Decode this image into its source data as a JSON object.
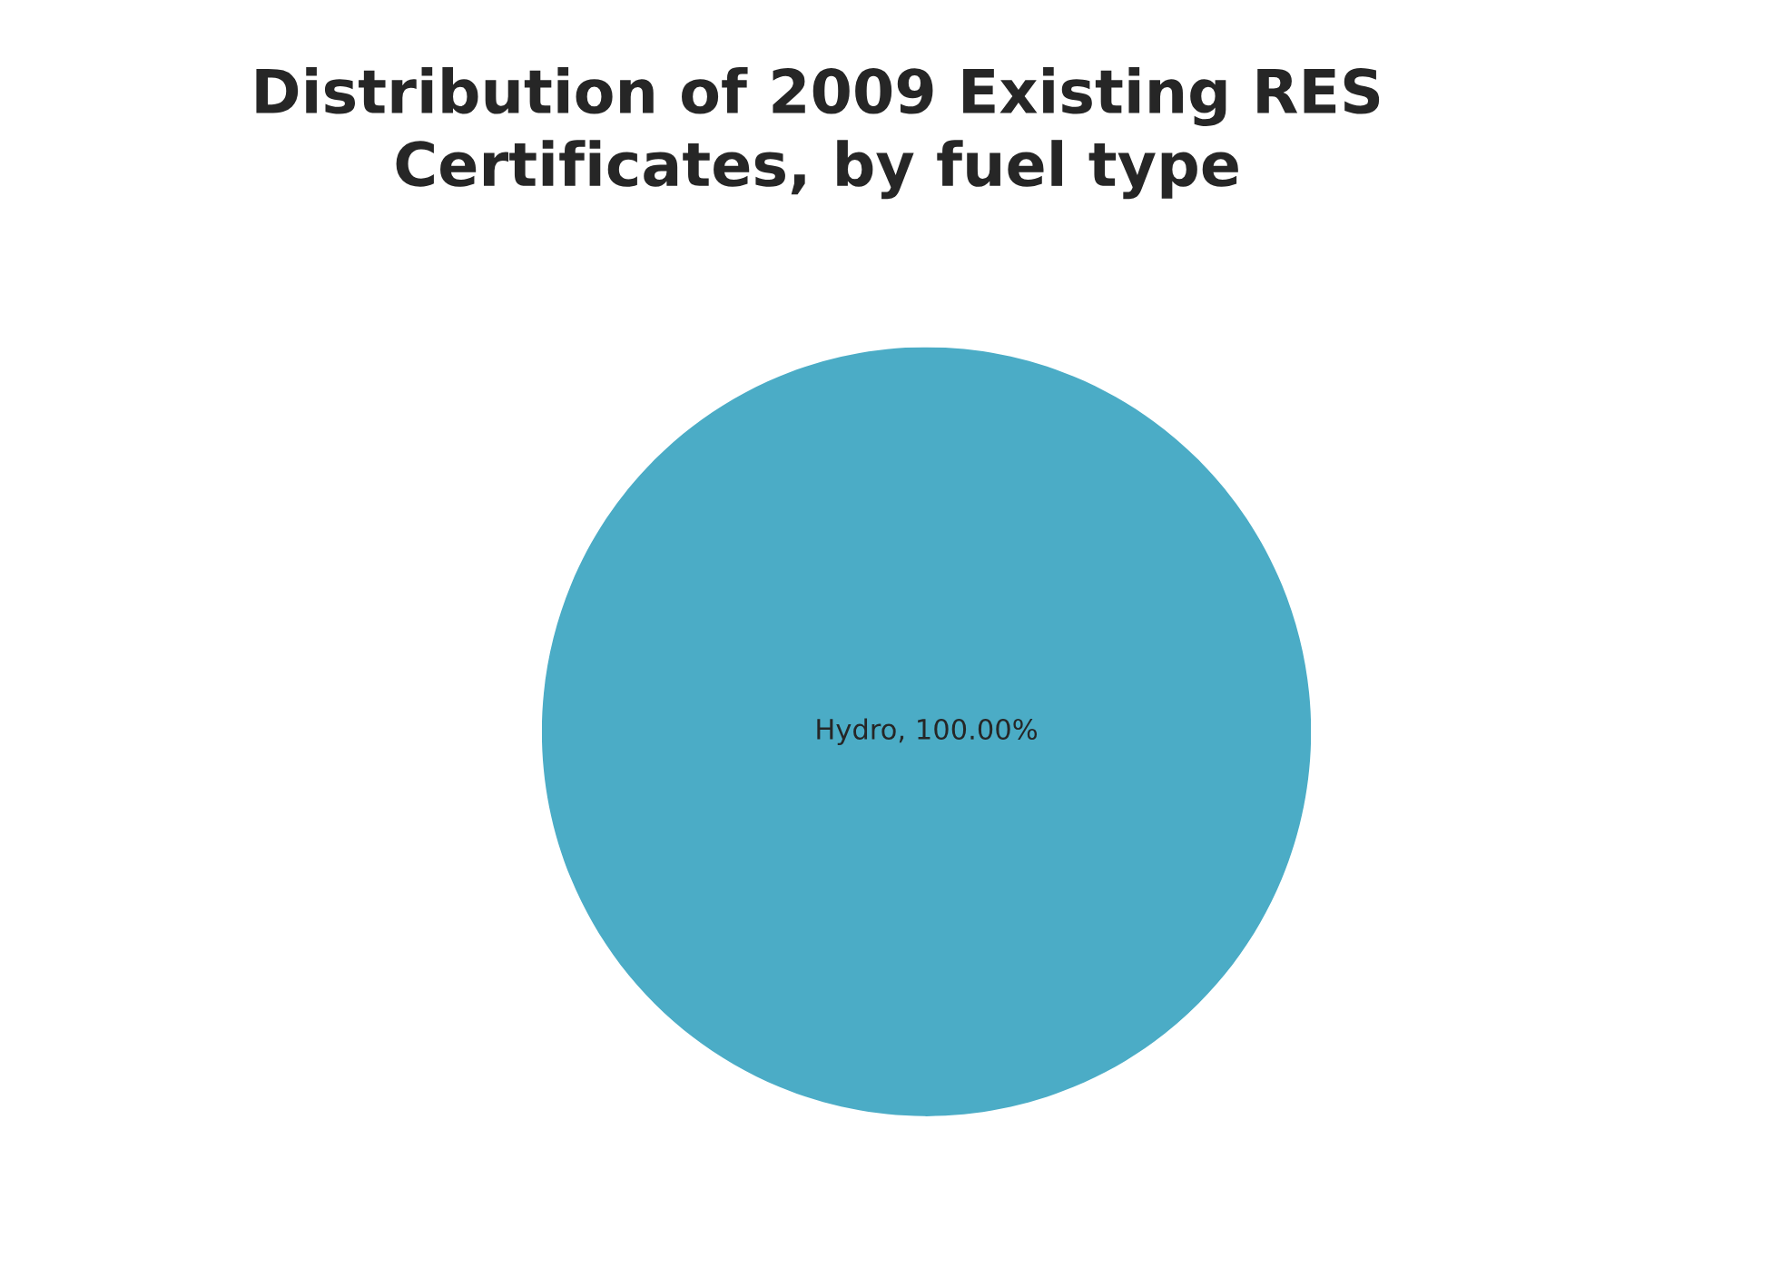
{
  "chart_data": {
    "type": "pie",
    "title": "Distribution of 2009 Existing RES\nCertificates, by fuel type",
    "categories": [
      "Hydro"
    ],
    "values": [
      100
    ],
    "colors": [
      "#4bacc6"
    ],
    "value_labels": [
      "100.00%"
    ],
    "legend": false
  }
}
